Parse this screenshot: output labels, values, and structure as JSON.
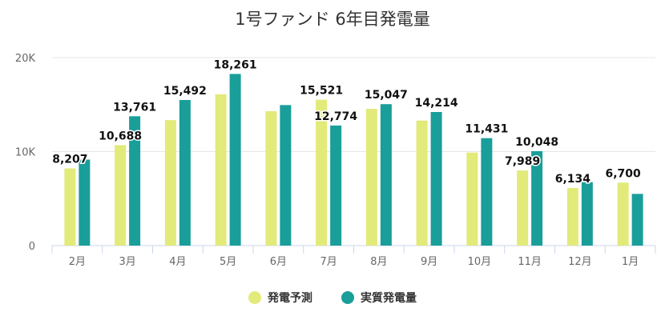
{
  "chart_data": {
    "type": "bar",
    "title": "1号ファンド 6年目発電量",
    "categories": [
      "2月",
      "3月",
      "4月",
      "5月",
      "6月",
      "7月",
      "8月",
      "9月",
      "10月",
      "11月",
      "12月",
      "1月"
    ],
    "series": [
      {
        "name": "発電予測",
        "color": "#e2ea7a",
        "values": [
          8207,
          10688,
          13350,
          16100,
          14300,
          15521,
          14550,
          13300,
          9900,
          7989,
          6134,
          6700
        ],
        "labels": [
          "8,207",
          "10,688",
          "",
          "",
          "",
          "15,521",
          "",
          "",
          "",
          "7,989",
          "6,134",
          "6,700"
        ]
      },
      {
        "name": "実質発電量",
        "color": "#1a9e9a",
        "values": [
          9150,
          13761,
          15492,
          18261,
          14950,
          12774,
          15047,
          14214,
          11431,
          10048,
          6750,
          5500
        ],
        "labels": [
          "",
          "13,761",
          "15,492",
          "18,261",
          "",
          "12,774",
          "15,047",
          "14,214",
          "11,431",
          "10,048",
          "",
          ""
        ]
      }
    ],
    "yaxis": {
      "ticks": [
        0,
        10000,
        20000
      ],
      "tick_labels": [
        "0",
        "10K",
        "20K"
      ],
      "max": 20000
    },
    "grid": true,
    "legend_position": "bottom"
  }
}
